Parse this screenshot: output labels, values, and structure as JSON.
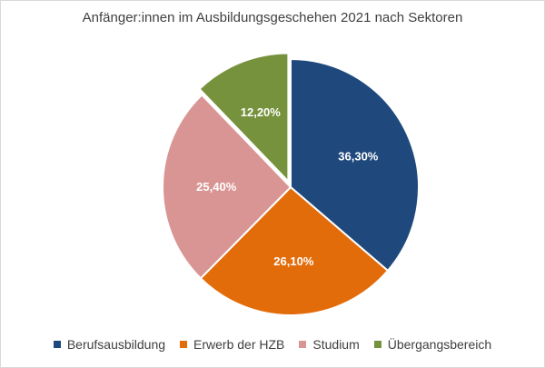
{
  "chart_data": {
    "type": "pie",
    "title": "Anfänger:innen im Ausbildungsgeschehen 2021 nach Sektoren",
    "categories": [
      "Berufsausbildung",
      "Erwerb der HZB",
      "Studium",
      "Übergangsbereich"
    ],
    "values": [
      36.3,
      26.1,
      25.4,
      12.2
    ],
    "labels": [
      "36,30%",
      "26,10%",
      "25,40%",
      "12,20%"
    ],
    "colors": [
      "#1f497d",
      "#e36c0a",
      "#d99594",
      "#76923c"
    ],
    "exploded": [
      false,
      false,
      false,
      true
    ],
    "legend_position": "bottom"
  }
}
